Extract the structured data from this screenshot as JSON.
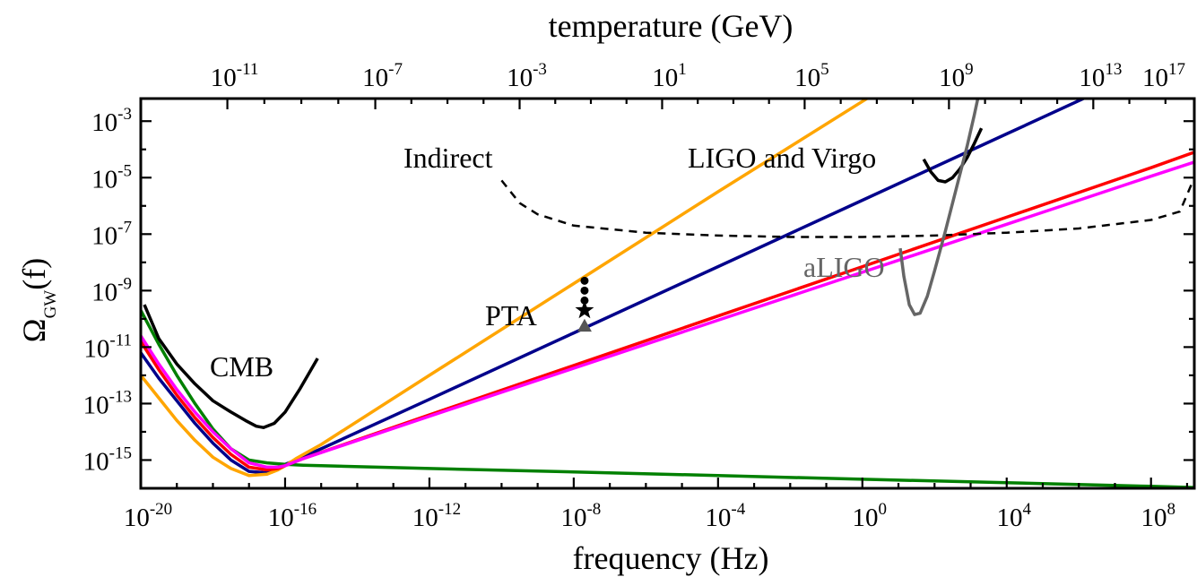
{
  "chart_data": {
    "type": "line",
    "title": "",
    "xlabel": "frequency (Hz)",
    "x2label": "temperature (GeV)",
    "ylabel": "Ω",
    "ylabel_sub": "GW",
    "ylabel_arg": "(f)",
    "x_scale": "log",
    "y_scale": "log",
    "xlim_log10": [
      -20,
      9.2
    ],
    "ylim_log10": [
      -16,
      -2.2
    ],
    "grid": false,
    "x_ticks": [
      {
        "base": "10",
        "exp": "-20",
        "log": -20
      },
      {
        "base": "10",
        "exp": "-16",
        "log": -16
      },
      {
        "base": "10",
        "exp": "-12",
        "log": -12
      },
      {
        "base": "10",
        "exp": "-8",
        "log": -8
      },
      {
        "base": "10",
        "exp": "-4",
        "log": -4
      },
      {
        "base": "10",
        "exp": "0",
        "log": 0
      },
      {
        "base": "10",
        "exp": "4",
        "log": 4
      },
      {
        "base": "10",
        "exp": "8",
        "log": 8
      }
    ],
    "top_ticks": [
      {
        "base": "10",
        "exp": "-11",
        "log_f": -17.6
      },
      {
        "base": "10",
        "exp": "-7",
        "log_f": -13.5
      },
      {
        "base": "10",
        "exp": "-3",
        "log_f": -9.5
      },
      {
        "base": "10",
        "exp": "1",
        "log_f": -5.55
      },
      {
        "base": "10",
        "exp": "5",
        "log_f": -1.6
      },
      {
        "base": "10",
        "exp": "9",
        "log_f": 2.4
      },
      {
        "base": "10",
        "exp": "13",
        "log_f": 6.4
      },
      {
        "base": "10",
        "exp": "17",
        "log_f": 10.4
      }
    ],
    "y_ticks": [
      {
        "base": "10",
        "exp": "-3",
        "log": -3
      },
      {
        "base": "10",
        "exp": "-5",
        "log": -5
      },
      {
        "base": "10",
        "exp": "-7",
        "log": -7
      },
      {
        "base": "10",
        "exp": "-9",
        "log": -9
      },
      {
        "base": "10",
        "exp": "-11",
        "log": -11
      },
      {
        "base": "10",
        "exp": "-13",
        "log": -13
      },
      {
        "base": "10",
        "exp": "-15",
        "log": -15
      }
    ],
    "series": [
      {
        "color": "#00008b",
        "style": "solid",
        "log_x": [
          -20,
          -19.5,
          -19,
          -18.5,
          -18,
          -17.5,
          -17,
          -16.5,
          -16.2,
          -16,
          -15.7,
          -15,
          -12,
          -8,
          -4,
          0,
          4,
          8,
          9.2
        ],
        "log_y": [
          -11.2,
          -12.1,
          -12.9,
          -13.7,
          -14.4,
          -15.0,
          -15.4,
          -15.45,
          -15.3,
          -15.15,
          -15.0,
          -14.6,
          -12.85,
          -10.5,
          -8.15,
          -5.8,
          -3.45,
          -1.1,
          -0.4
        ]
      },
      {
        "color": "#ffa500",
        "style": "solid",
        "log_x": [
          -20,
          -19.5,
          -19,
          -18.5,
          -18,
          -17.5,
          -17,
          -16.5,
          -16.2,
          -16,
          -15.7,
          -15,
          -12,
          -8,
          -4,
          0,
          4,
          8,
          9.2
        ],
        "log_y": [
          -12.0,
          -12.8,
          -13.6,
          -14.3,
          -14.9,
          -15.3,
          -15.55,
          -15.5,
          -15.35,
          -15.2,
          -14.95,
          -14.45,
          -12.0,
          -8.75,
          -5.5,
          -2.3,
          0.9,
          4.1,
          5.1
        ]
      },
      {
        "color": "#008000",
        "style": "solid",
        "log_x": [
          -20,
          -19.5,
          -19,
          -18.5,
          -18,
          -17.5,
          -17,
          -16.5,
          -16,
          -15.5,
          -15,
          -12,
          -8,
          -4,
          0,
          4,
          8,
          9.2
        ],
        "log_y": [
          -9.7,
          -10.9,
          -12.0,
          -13.0,
          -13.9,
          -14.6,
          -15.0,
          -15.1,
          -15.15,
          -15.18,
          -15.2,
          -15.3,
          -15.42,
          -15.55,
          -15.68,
          -15.8,
          -15.93,
          -15.97
        ]
      },
      {
        "color": "#ff0000",
        "style": "solid",
        "log_x": [
          -20,
          -19.5,
          -19,
          -18.5,
          -18,
          -17.5,
          -17,
          -16.5,
          -16.2,
          -16,
          -15.5,
          -12,
          -8,
          -4,
          0,
          4,
          8,
          9.2
        ],
        "log_y": [
          -10.8,
          -11.8,
          -12.7,
          -13.5,
          -14.2,
          -14.8,
          -15.25,
          -15.35,
          -15.3,
          -15.2,
          -14.95,
          -13.4,
          -11.65,
          -9.9,
          -8.15,
          -6.4,
          -4.65,
          -4.1
        ]
      },
      {
        "color": "#ff00ff",
        "style": "solid",
        "log_x": [
          -20,
          -19.5,
          -19,
          -18.5,
          -18,
          -17.5,
          -17,
          -16.5,
          -16.2,
          -16,
          -15.5,
          -12,
          -8,
          -4,
          0,
          4,
          8,
          9.2
        ],
        "log_y": [
          -10.6,
          -11.6,
          -12.5,
          -13.3,
          -14.0,
          -14.6,
          -15.1,
          -15.25,
          -15.25,
          -15.2,
          -14.95,
          -13.45,
          -11.75,
          -10.05,
          -8.35,
          -6.65,
          -4.95,
          -4.45
        ]
      }
    ],
    "constraints": [
      {
        "label": "CMB",
        "color": "#000000",
        "style": "solid",
        "log_x": [
          -19.9,
          -19.5,
          -19,
          -18.5,
          -18,
          -17.5,
          -17.1,
          -16.8,
          -16.6,
          -16.3,
          -16.0,
          -15.6,
          -15.1
        ],
        "log_y": [
          -9.5,
          -10.7,
          -11.6,
          -12.3,
          -12.9,
          -13.3,
          -13.6,
          -13.8,
          -13.85,
          -13.7,
          -13.3,
          -12.5,
          -11.4
        ]
      },
      {
        "label": "Indirect",
        "color": "#000000",
        "style": "dashed",
        "log_x": [
          -10,
          -9.5,
          -9,
          -8,
          -6,
          -4,
          -2,
          0,
          2,
          4,
          6,
          8,
          8.8,
          9.2
        ],
        "log_y": [
          -5.1,
          -5.9,
          -6.3,
          -6.7,
          -6.95,
          -7.05,
          -7.1,
          -7.1,
          -7.05,
          -6.95,
          -6.8,
          -6.5,
          -6.2,
          -5.0
        ]
      },
      {
        "label": "LIGO and Virgo",
        "color": "#000000",
        "style": "solid",
        "log_x": [
          1.7,
          1.9,
          2.1,
          2.3,
          2.5,
          2.7,
          2.9,
          3.1,
          3.3
        ],
        "log_y": [
          -4.35,
          -4.8,
          -5.1,
          -5.15,
          -5.0,
          -4.7,
          -4.3,
          -3.8,
          -3.25
        ]
      },
      {
        "label": "aLIGO",
        "color": "#666666",
        "style": "solid",
        "log_x": [
          1.05,
          1.15,
          1.3,
          1.45,
          1.6,
          1.8,
          2.0,
          2.3,
          2.6,
          2.9,
          3.1,
          3.3,
          3.4
        ],
        "log_y": [
          -7.5,
          -8.5,
          -9.5,
          -9.85,
          -9.8,
          -9.2,
          -8.3,
          -6.9,
          -5.4,
          -3.9,
          -2.8,
          -1.6,
          -1.0
        ]
      }
    ],
    "pta": {
      "label": "PTA",
      "star": {
        "log_x": -7.7,
        "log_y": -9.7
      },
      "dots": [
        {
          "log_x": -7.7,
          "log_y": -8.65
        },
        {
          "log_x": -7.7,
          "log_y": -9.0
        },
        {
          "log_x": -7.7,
          "log_y": -9.35
        }
      ],
      "triangle": {
        "log_x": -7.7,
        "log_y": -10.25
      }
    }
  }
}
